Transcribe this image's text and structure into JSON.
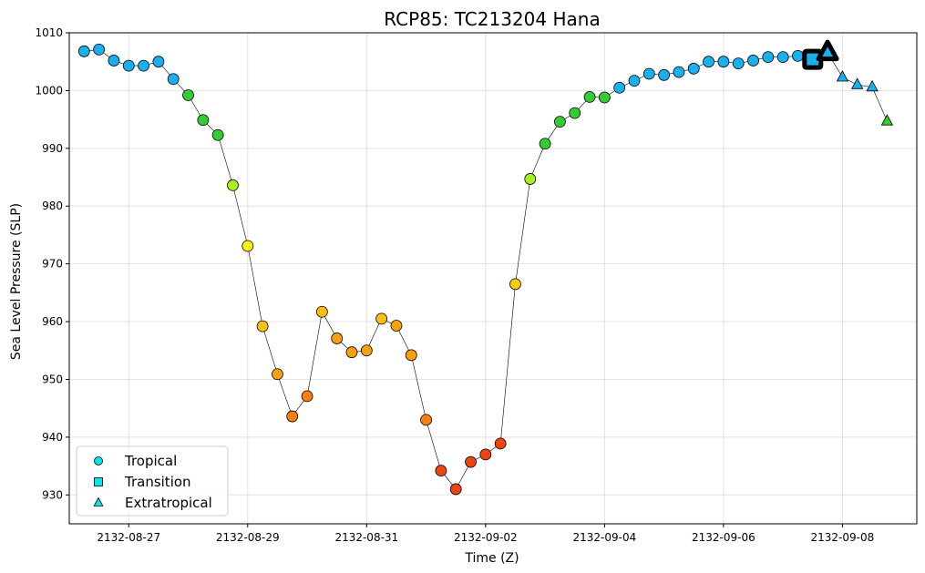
{
  "chart_data": {
    "type": "scatter",
    "title": "RCP85: TC213204 Hana",
    "xlabel": "Time (Z)",
    "ylabel": "Sea Level Pressure (SLP)",
    "ylim": [
      925,
      1010
    ],
    "xlim": [
      "2132-08-26 00:00",
      "2132-09-09 06:00"
    ],
    "grid": true,
    "legend_placement": "lower-left",
    "x_ticks": [
      "2132-08-27",
      "2132-08-29",
      "2132-08-31",
      "2132-09-02",
      "2132-09-04",
      "2132-09-06",
      "2132-09-08"
    ],
    "y_ticks": [
      930,
      940,
      950,
      960,
      970,
      980,
      990,
      1000,
      1010
    ],
    "legend": [
      {
        "label": "Tropical",
        "marker": "circle",
        "color": "#00e5ee"
      },
      {
        "label": "Transition",
        "marker": "square",
        "color": "#00e5ee"
      },
      {
        "label": "Extratropical",
        "marker": "triangle",
        "color": "#00e5ee"
      }
    ],
    "line_color": "#000000",
    "points": [
      {
        "t": "2132-08-26 06:00",
        "slp": 1006.8,
        "phase": "tropical",
        "color": "#1ab0ee"
      },
      {
        "t": "2132-08-26 12:00",
        "slp": 1007.1,
        "phase": "tropical",
        "color": "#1ab0ee"
      },
      {
        "t": "2132-08-26 18:00",
        "slp": 1005.2,
        "phase": "tropical",
        "color": "#1ab0ee"
      },
      {
        "t": "2132-08-27 00:00",
        "slp": 1004.3,
        "phase": "tropical",
        "color": "#1ab0ee"
      },
      {
        "t": "2132-08-27 06:00",
        "slp": 1004.3,
        "phase": "tropical",
        "color": "#1ab0ee"
      },
      {
        "t": "2132-08-27 12:00",
        "slp": 1005.0,
        "phase": "tropical",
        "color": "#1ab0ee"
      },
      {
        "t": "2132-08-27 18:00",
        "slp": 1002.0,
        "phase": "tropical",
        "color": "#1ab0ee"
      },
      {
        "t": "2132-08-28 00:00",
        "slp": 999.2,
        "phase": "tropical",
        "color": "#33cc33"
      },
      {
        "t": "2132-08-28 06:00",
        "slp": 994.9,
        "phase": "tropical",
        "color": "#33cc33"
      },
      {
        "t": "2132-08-28 12:00",
        "slp": 992.3,
        "phase": "tropical",
        "color": "#33cc33"
      },
      {
        "t": "2132-08-28 18:00",
        "slp": 983.6,
        "phase": "tropical",
        "color": "#aaee22"
      },
      {
        "t": "2132-08-29 00:00",
        "slp": 973.1,
        "phase": "tropical",
        "color": "#ffee11"
      },
      {
        "t": "2132-08-29 06:00",
        "slp": 959.2,
        "phase": "tropical",
        "color": "#f7c012"
      },
      {
        "t": "2132-08-29 12:00",
        "slp": 950.9,
        "phase": "tropical",
        "color": "#f7a010"
      },
      {
        "t": "2132-08-29 18:00",
        "slp": 943.6,
        "phase": "tropical",
        "color": "#f78010"
      },
      {
        "t": "2132-08-30 00:00",
        "slp": 947.1,
        "phase": "tropical",
        "color": "#f78010"
      },
      {
        "t": "2132-08-30 06:00",
        "slp": 961.7,
        "phase": "tropical",
        "color": "#f7c012"
      },
      {
        "t": "2132-08-30 12:00",
        "slp": 957.1,
        "phase": "tropical",
        "color": "#f7a010"
      },
      {
        "t": "2132-08-30 18:00",
        "slp": 954.7,
        "phase": "tropical",
        "color": "#f7a010"
      },
      {
        "t": "2132-08-31 00:00",
        "slp": 955.0,
        "phase": "tropical",
        "color": "#f7a010"
      },
      {
        "t": "2132-08-31 06:00",
        "slp": 960.5,
        "phase": "tropical",
        "color": "#f7c012"
      },
      {
        "t": "2132-08-31 12:00",
        "slp": 959.3,
        "phase": "tropical",
        "color": "#f7a010"
      },
      {
        "t": "2132-08-31 18:00",
        "slp": 954.2,
        "phase": "tropical",
        "color": "#f7a010"
      },
      {
        "t": "2132-09-01 00:00",
        "slp": 943.0,
        "phase": "tropical",
        "color": "#f78010"
      },
      {
        "t": "2132-09-01 06:00",
        "slp": 934.2,
        "phase": "tropical",
        "color": "#ee4411"
      },
      {
        "t": "2132-09-01 12:00",
        "slp": 931.0,
        "phase": "tropical",
        "color": "#ee4411"
      },
      {
        "t": "2132-09-01 18:00",
        "slp": 935.7,
        "phase": "tropical",
        "color": "#ee4411"
      },
      {
        "t": "2132-09-02 00:00",
        "slp": 937.0,
        "phase": "tropical",
        "color": "#ee4411"
      },
      {
        "t": "2132-09-02 06:00",
        "slp": 938.9,
        "phase": "tropical",
        "color": "#ee4411"
      },
      {
        "t": "2132-09-02 12:00",
        "slp": 966.5,
        "phase": "tropical",
        "color": "#f7cc12"
      },
      {
        "t": "2132-09-02 18:00",
        "slp": 984.7,
        "phase": "tropical",
        "color": "#aaee22"
      },
      {
        "t": "2132-09-03 00:00",
        "slp": 990.8,
        "phase": "tropical",
        "color": "#33cc33"
      },
      {
        "t": "2132-09-03 06:00",
        "slp": 994.6,
        "phase": "tropical",
        "color": "#33cc33"
      },
      {
        "t": "2132-09-03 12:00",
        "slp": 996.1,
        "phase": "tropical",
        "color": "#33cc33"
      },
      {
        "t": "2132-09-03 18:00",
        "slp": 998.9,
        "phase": "tropical",
        "color": "#33cc33"
      },
      {
        "t": "2132-09-04 00:00",
        "slp": 998.8,
        "phase": "tropical",
        "color": "#33cc33"
      },
      {
        "t": "2132-09-04 06:00",
        "slp": 1000.5,
        "phase": "tropical",
        "color": "#1ab0ee"
      },
      {
        "t": "2132-09-04 12:00",
        "slp": 1001.7,
        "phase": "tropical",
        "color": "#1ab0ee"
      },
      {
        "t": "2132-09-04 18:00",
        "slp": 1002.9,
        "phase": "tropical",
        "color": "#1ab0ee"
      },
      {
        "t": "2132-09-05 00:00",
        "slp": 1002.7,
        "phase": "tropical",
        "color": "#1ab0ee"
      },
      {
        "t": "2132-09-05 06:00",
        "slp": 1003.2,
        "phase": "tropical",
        "color": "#1ab0ee"
      },
      {
        "t": "2132-09-05 12:00",
        "slp": 1003.8,
        "phase": "tropical",
        "color": "#1ab0ee"
      },
      {
        "t": "2132-09-05 18:00",
        "slp": 1005.0,
        "phase": "tropical",
        "color": "#1ab0ee"
      },
      {
        "t": "2132-09-06 00:00",
        "slp": 1005.0,
        "phase": "tropical",
        "color": "#1ab0ee"
      },
      {
        "t": "2132-09-06 06:00",
        "slp": 1004.7,
        "phase": "tropical",
        "color": "#1ab0ee"
      },
      {
        "t": "2132-09-06 12:00",
        "slp": 1005.2,
        "phase": "tropical",
        "color": "#1ab0ee"
      },
      {
        "t": "2132-09-06 18:00",
        "slp": 1005.8,
        "phase": "tropical",
        "color": "#1ab0ee"
      },
      {
        "t": "2132-09-07 00:00",
        "slp": 1005.8,
        "phase": "tropical",
        "color": "#1ab0ee"
      },
      {
        "t": "2132-09-07 06:00",
        "slp": 1006.0,
        "phase": "tropical",
        "color": "#1ab0ee"
      },
      {
        "t": "2132-09-07 12:00",
        "slp": 1005.4,
        "phase": "transition",
        "color": "#1ab0ee"
      },
      {
        "t": "2132-09-07 18:00",
        "slp": 1006.6,
        "phase": "extratropical",
        "color": "#1ab0ee"
      },
      {
        "t": "2132-09-08 00:00",
        "slp": 1002.3,
        "phase": "extratropical",
        "color": "#1ab0ee"
      },
      {
        "t": "2132-09-08 06:00",
        "slp": 1001.0,
        "phase": "extratropical",
        "color": "#1ab0ee"
      },
      {
        "t": "2132-09-08 12:00",
        "slp": 1000.6,
        "phase": "extratropical",
        "color": "#1ab0ee"
      },
      {
        "t": "2132-09-08 18:00",
        "slp": 994.7,
        "phase": "extratropical",
        "color": "#33cc33"
      }
    ],
    "highlight": [
      {
        "t": "2132-09-07 12:00",
        "slp": 1005.4,
        "marker": "square"
      },
      {
        "t": "2132-09-07 18:00",
        "slp": 1006.6,
        "marker": "triangle"
      }
    ]
  }
}
